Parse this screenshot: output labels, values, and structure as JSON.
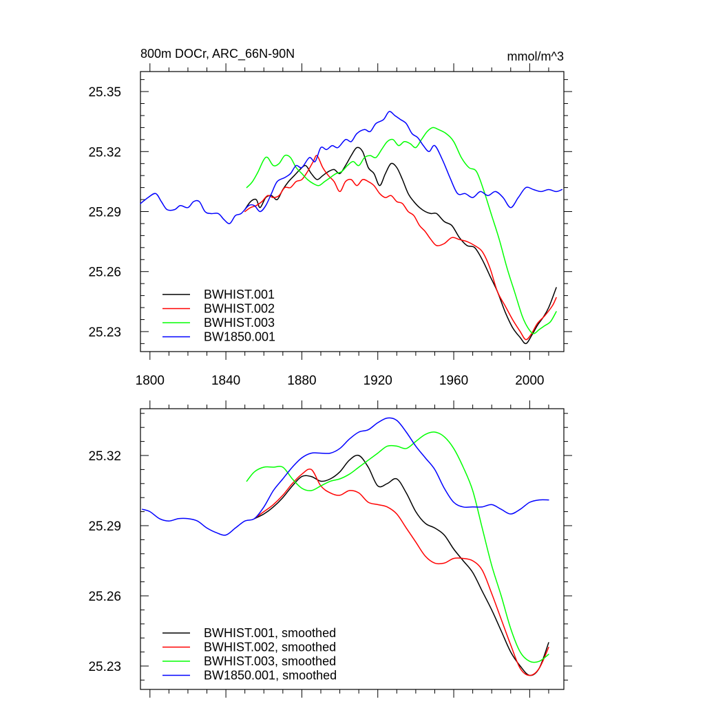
{
  "chart_data": [
    {
      "type": "line",
      "title": "800m DOCr, ARC_66N-90N",
      "units": "mmol/m^3",
      "xlim": [
        1795,
        2018
      ],
      "ylim": [
        25.22,
        25.36
      ],
      "xticks": [
        1800,
        1840,
        1880,
        1920,
        1960,
        2000
      ],
      "xtick_labels": [
        "1800",
        "1840",
        "1880",
        "1920",
        "1960",
        "2000"
      ],
      "yticks": [
        25.23,
        25.26,
        25.29,
        25.32,
        25.35
      ],
      "ytick_labels": [
        "25.23",
        "25.26",
        "25.29",
        "25.32",
        "25.35"
      ],
      "legend_position": "bottom-left",
      "series": [
        {
          "name": "BWHIST.001",
          "color": "#000000",
          "x": [
            1850,
            1853,
            1856,
            1858,
            1861,
            1864,
            1867,
            1870,
            1873,
            1876,
            1879,
            1882,
            1885,
            1888,
            1891,
            1894,
            1897,
            1900,
            1903,
            1906,
            1909,
            1912,
            1915,
            1918,
            1921,
            1924,
            1927,
            1930,
            1933,
            1936,
            1939,
            1942,
            1945,
            1948,
            1951,
            1955,
            1959,
            1963,
            1967,
            1971,
            1975,
            1979,
            1983,
            1987,
            1991,
            1995,
            1998,
            2001,
            2004,
            2007,
            2010,
            2014
          ],
          "y": [
            25.291,
            25.295,
            25.296,
            25.292,
            25.297,
            25.298,
            25.296,
            25.301,
            25.305,
            25.308,
            25.311,
            25.313,
            25.309,
            25.306,
            25.308,
            25.31,
            25.311,
            25.309,
            25.313,
            25.318,
            25.322,
            25.32,
            25.312,
            25.309,
            25.303,
            25.309,
            25.314,
            25.312,
            25.306,
            25.299,
            25.295,
            25.292,
            25.29,
            25.289,
            25.289,
            25.285,
            25.283,
            25.277,
            25.273,
            25.272,
            25.266,
            25.258,
            25.25,
            25.24,
            25.232,
            25.227,
            25.224,
            25.228,
            25.233,
            25.237,
            25.242,
            25.252
          ]
        },
        {
          "name": "BWHIST.002",
          "color": "#ff0000",
          "x": [
            1850,
            1853,
            1856,
            1859,
            1862,
            1865,
            1868,
            1871,
            1874,
            1877,
            1880,
            1883,
            1886,
            1888,
            1891,
            1894,
            1897,
            1900,
            1903,
            1906,
            1909,
            1912,
            1915,
            1918,
            1921,
            1924,
            1927,
            1930,
            1933,
            1936,
            1939,
            1942,
            1945,
            1948,
            1951,
            1955,
            1959,
            1963,
            1967,
            1971,
            1975,
            1979,
            1983,
            1987,
            1991,
            1995,
            1998,
            2001,
            2004,
            2008,
            2012,
            2014
          ],
          "y": [
            25.29,
            25.292,
            25.293,
            25.295,
            25.298,
            25.297,
            25.298,
            25.302,
            25.302,
            25.305,
            25.306,
            25.31,
            25.315,
            25.318,
            25.312,
            25.308,
            25.305,
            25.3,
            25.305,
            25.306,
            25.303,
            25.306,
            25.305,
            25.303,
            25.299,
            25.297,
            25.298,
            25.295,
            25.294,
            25.29,
            25.288,
            25.283,
            25.28,
            25.276,
            25.273,
            25.274,
            25.277,
            25.276,
            25.275,
            25.273,
            25.27,
            25.262,
            25.25,
            25.243,
            25.236,
            25.23,
            25.226,
            25.229,
            25.234,
            25.238,
            25.243,
            25.247
          ]
        },
        {
          "name": "BWHIST.003",
          "color": "#00ff00",
          "x": [
            1851,
            1854,
            1857,
            1860,
            1862,
            1865,
            1868,
            1871,
            1874,
            1877,
            1880,
            1883,
            1886,
            1889,
            1892,
            1895,
            1898,
            1901,
            1904,
            1907,
            1910,
            1913,
            1916,
            1919,
            1922,
            1925,
            1928,
            1931,
            1934,
            1937,
            1940,
            1943,
            1946,
            1949,
            1952,
            1956,
            1960,
            1964,
            1968,
            1972,
            1976,
            1980,
            1984,
            1988,
            1992,
            1996,
            1999,
            2002,
            2005,
            2008,
            2011,
            2014
          ],
          "y": [
            25.302,
            25.305,
            25.31,
            25.316,
            25.317,
            25.313,
            25.314,
            25.318,
            25.317,
            25.312,
            25.309,
            25.306,
            25.304,
            25.303,
            25.305,
            25.307,
            25.309,
            25.31,
            25.313,
            25.315,
            25.313,
            25.317,
            25.318,
            25.317,
            25.321,
            25.325,
            25.326,
            25.323,
            25.325,
            25.324,
            25.322,
            25.326,
            25.33,
            25.332,
            25.331,
            25.329,
            25.325,
            25.317,
            25.312,
            25.31,
            25.3,
            25.288,
            25.276,
            25.262,
            25.25,
            25.238,
            25.232,
            25.229,
            25.231,
            25.233,
            25.235,
            25.24
          ]
        },
        {
          "name": "BW1850.001",
          "color": "#0000ff",
          "x": [
            1795,
            1799,
            1803,
            1806,
            1809,
            1813,
            1816,
            1820,
            1823,
            1826,
            1829,
            1832,
            1836,
            1839,
            1842,
            1845,
            1848,
            1852,
            1855,
            1858,
            1861,
            1864,
            1867,
            1871,
            1874,
            1877,
            1880,
            1884,
            1887,
            1890,
            1893,
            1896,
            1899,
            1903,
            1906,
            1909,
            1913,
            1916,
            1919,
            1923,
            1926,
            1929,
            1932,
            1935,
            1938,
            1941,
            1944,
            1947,
            1950,
            1954,
            1958,
            1962,
            1966,
            1970,
            1974,
            1978,
            1982,
            1986,
            1990,
            1994,
            1998,
            2002,
            2006,
            2010,
            2014,
            2017
          ],
          "y": [
            25.294,
            25.297,
            25.299,
            25.295,
            25.291,
            25.291,
            25.293,
            25.292,
            25.295,
            25.295,
            25.29,
            25.289,
            25.289,
            25.286,
            25.284,
            25.288,
            25.289,
            25.293,
            25.293,
            25.29,
            25.293,
            25.299,
            25.305,
            25.307,
            25.309,
            25.313,
            25.312,
            25.317,
            25.315,
            25.322,
            25.321,
            25.323,
            25.322,
            25.326,
            25.325,
            25.329,
            25.331,
            25.33,
            25.334,
            25.336,
            25.34,
            25.338,
            25.336,
            25.334,
            25.329,
            25.327,
            25.323,
            25.32,
            25.323,
            25.316,
            25.307,
            25.299,
            25.299,
            25.297,
            25.3,
            25.298,
            25.3,
            25.297,
            25.292,
            25.297,
            25.302,
            25.301,
            25.3,
            25.301,
            25.3,
            25.301
          ]
        }
      ]
    },
    {
      "type": "line",
      "xlim": [
        1795,
        2018
      ],
      "ylim": [
        25.22,
        25.34
      ],
      "xticks": [
        1800,
        1840,
        1880,
        1920,
        1960,
        2000
      ],
      "yticks": [
        25.23,
        25.26,
        25.29,
        25.32
      ],
      "ytick_labels": [
        "25.23",
        "25.26",
        "25.29",
        "25.32"
      ],
      "legend_position": "bottom-left",
      "series": [
        {
          "name": "BWHIST.001, smoothed",
          "color": "#000000",
          "x": [
            1855,
            1860,
            1865,
            1870,
            1875,
            1880,
            1885,
            1890,
            1895,
            1900,
            1905,
            1910,
            1915,
            1920,
            1925,
            1930,
            1935,
            1940,
            1945,
            1950,
            1955,
            1960,
            1965,
            1970,
            1975,
            1980,
            1985,
            1990,
            1995,
            2000,
            2005,
            2010
          ],
          "y": [
            25.293,
            25.295,
            25.298,
            25.302,
            25.307,
            25.311,
            25.311,
            25.309,
            25.31,
            25.313,
            25.318,
            25.32,
            25.315,
            25.307,
            25.308,
            25.31,
            25.304,
            25.296,
            25.291,
            25.289,
            25.286,
            25.28,
            25.275,
            25.27,
            25.262,
            25.254,
            25.245,
            25.236,
            25.23,
            25.226,
            25.229,
            25.24
          ]
        },
        {
          "name": "BWHIST.002, smoothed",
          "color": "#ff0000",
          "x": [
            1855,
            1860,
            1865,
            1870,
            1875,
            1880,
            1885,
            1890,
            1895,
            1900,
            1905,
            1910,
            1915,
            1920,
            1925,
            1930,
            1935,
            1940,
            1945,
            1950,
            1955,
            1960,
            1965,
            1970,
            1975,
            1980,
            1985,
            1990,
            1995,
            2000,
            2005,
            2010
          ],
          "y": [
            25.293,
            25.296,
            25.299,
            25.303,
            25.308,
            25.312,
            25.314,
            25.307,
            25.304,
            25.303,
            25.305,
            25.304,
            25.3,
            25.299,
            25.298,
            25.295,
            25.289,
            25.283,
            25.277,
            25.274,
            25.274,
            25.276,
            25.276,
            25.275,
            25.271,
            25.261,
            25.25,
            25.239,
            25.229,
            25.226,
            25.229,
            25.238
          ]
        },
        {
          "name": "BWHIST.003, smoothed",
          "color": "#00ff00",
          "x": [
            1851,
            1855,
            1860,
            1865,
            1870,
            1875,
            1880,
            1885,
            1890,
            1895,
            1900,
            1905,
            1910,
            1915,
            1920,
            1925,
            1930,
            1935,
            1940,
            1945,
            1950,
            1955,
            1960,
            1965,
            1970,
            1975,
            1980,
            1985,
            1990,
            1995,
            2000,
            2005,
            2010
          ],
          "y": [
            25.309,
            25.313,
            25.315,
            25.315,
            25.315,
            25.31,
            25.306,
            25.305,
            25.307,
            25.309,
            25.31,
            25.312,
            25.315,
            25.318,
            25.321,
            25.324,
            25.324,
            25.323,
            25.326,
            25.329,
            25.33,
            25.328,
            25.323,
            25.315,
            25.305,
            25.289,
            25.273,
            25.26,
            25.246,
            25.236,
            25.232,
            25.232,
            25.235
          ]
        },
        {
          "name": "BW1850.001, smoothed",
          "color": "#0000ff",
          "x": [
            1796,
            1800,
            1805,
            1810,
            1815,
            1820,
            1825,
            1830,
            1835,
            1840,
            1845,
            1850,
            1855,
            1860,
            1865,
            1870,
            1875,
            1880,
            1885,
            1890,
            1895,
            1900,
            1905,
            1910,
            1915,
            1920,
            1925,
            1930,
            1935,
            1940,
            1945,
            1950,
            1955,
            1960,
            1965,
            1970,
            1975,
            1980,
            1985,
            1990,
            1995,
            2000,
            2005,
            2010
          ],
          "y": [
            25.297,
            25.296,
            25.293,
            25.292,
            25.293,
            25.293,
            25.292,
            25.289,
            25.287,
            25.286,
            25.289,
            25.292,
            25.293,
            25.298,
            25.305,
            25.31,
            25.315,
            25.319,
            25.321,
            25.321,
            25.321,
            25.323,
            25.327,
            25.33,
            25.331,
            25.334,
            25.336,
            25.335,
            25.33,
            25.324,
            25.319,
            25.314,
            25.306,
            25.3,
            25.298,
            25.298,
            25.298,
            25.299,
            25.297,
            25.295,
            25.297,
            25.3,
            25.301,
            25.301
          ]
        }
      ]
    }
  ]
}
